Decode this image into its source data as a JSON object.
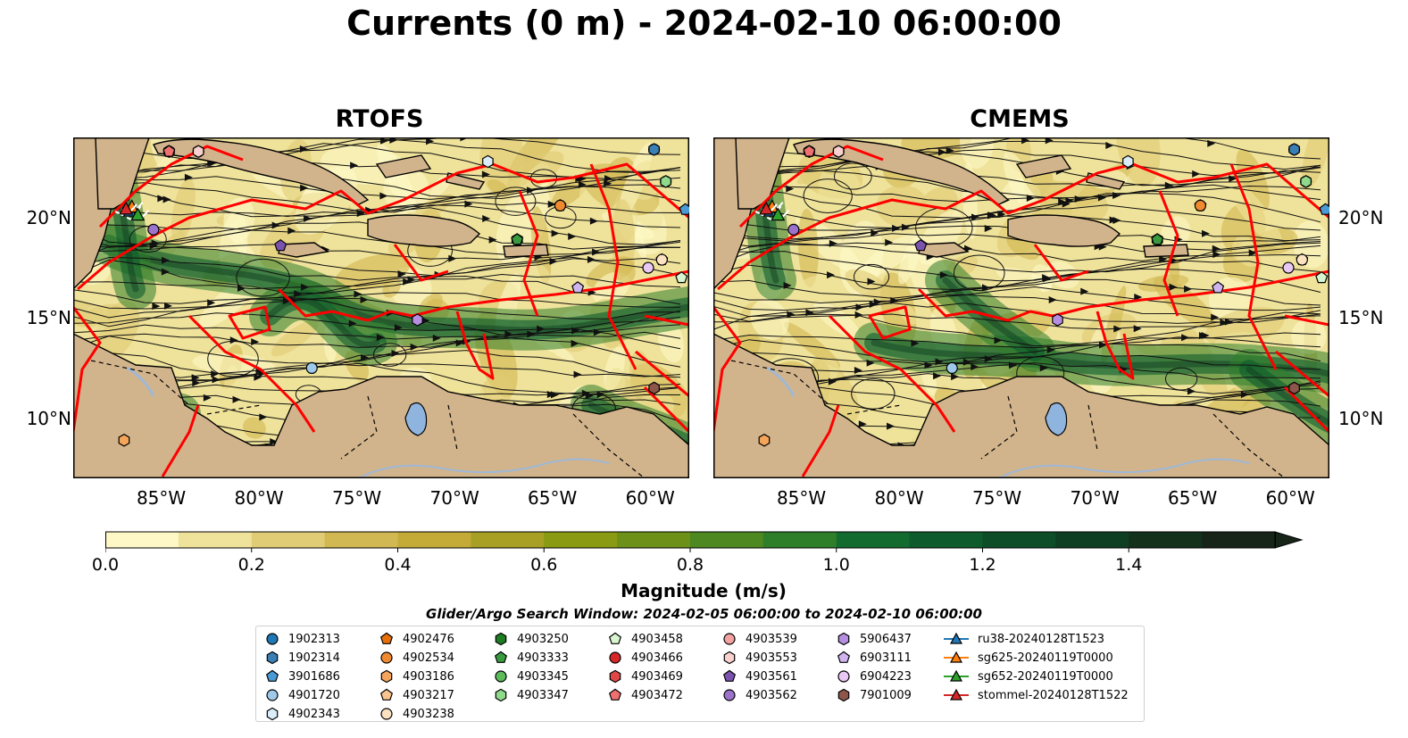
{
  "figure": {
    "title": "Currents (0 m) - 2024-02-10 06:00:00",
    "search_window": "Glider/Argo Search Window: 2024-02-05 06:00:00 to 2024-02-10 06:00:00"
  },
  "colors": {
    "land": "#d2b48c",
    "lake": "#8fb4de",
    "track": "#ff0000",
    "border": "#000000",
    "colormap": [
      "#fdf8c6",
      "#efe29a",
      "#e0cc74",
      "#d2b852",
      "#c4ab38",
      "#a7a024",
      "#8a9a12",
      "#6d9118",
      "#4d8820",
      "#2f7e2a",
      "#136b30",
      "#0e5c2d",
      "#0d4d28",
      "#0f3f22",
      "#14311c",
      "#172518"
    ]
  },
  "chart_data": [
    {
      "type": "heatmap",
      "title": "RTOFS",
      "xlim": [
        -89.5,
        -58
      ],
      "ylim": [
        7,
        24
      ],
      "xticks": [
        -85,
        -80,
        -75,
        -70,
        -65,
        -60
      ],
      "xtick_labels": [
        "85°W",
        "80°W",
        "75°W",
        "70°W",
        "65°W",
        "60°W"
      ],
      "yticks": [
        10,
        15,
        20
      ],
      "ytick_labels": [
        "10°N",
        "15°N",
        "20°N"
      ]
    },
    {
      "type": "heatmap",
      "title": "CMEMS",
      "xlim": [
        -89.5,
        -58
      ],
      "ylim": [
        7,
        24
      ],
      "xticks": [
        -85,
        -80,
        -75,
        -70,
        -65,
        -60
      ],
      "xtick_labels": [
        "85°W",
        "80°W",
        "75°W",
        "70°W",
        "65°W",
        "60°W"
      ],
      "yticks": [
        10,
        15,
        20
      ],
      "ytick_labels": [
        "10°N",
        "15°N",
        "20°N"
      ]
    }
  ],
  "colorbar": {
    "label": "Magnitude (m/s)",
    "min": 0.0,
    "max": 1.6,
    "step": 0.1,
    "ticks": [
      "0.0",
      "0.2",
      "0.4",
      "0.6",
      "0.8",
      "1.0",
      "1.2",
      "1.4"
    ],
    "extend": "max"
  },
  "floats": [
    {
      "id": "1902313",
      "marker": "circle",
      "color": "#1f77b4",
      "lon": -59.8,
      "lat": 23.4
    },
    {
      "id": "1902314",
      "marker": "hexagon",
      "color": "#3a7fb5",
      "lon": -59.8,
      "lat": 23.4
    },
    {
      "id": "3901686",
      "marker": "pentagon",
      "color": "#4a9ad6",
      "lon": -58.2,
      "lat": 20.4
    },
    {
      "id": "4901720",
      "marker": "circle",
      "color": "#9ec9ea",
      "lon": -77.3,
      "lat": 12.5
    },
    {
      "id": "4902343",
      "marker": "hexagon",
      "color": "#d9ecf8",
      "lon": -68.3,
      "lat": 22.8
    },
    {
      "id": "4902476",
      "marker": "pentagon",
      "color": "#e8700a",
      "lon": -64.6,
      "lat": 20.6
    },
    {
      "id": "4902534",
      "marker": "circle",
      "color": "#f08a30",
      "lon": -64.6,
      "lat": 20.6
    },
    {
      "id": "4903186",
      "marker": "hexagon",
      "color": "#f5a55a",
      "lon": -86.9,
      "lat": 8.9
    },
    {
      "id": "4903217",
      "marker": "pentagon",
      "color": "#f9c48e",
      "lon": -59.4,
      "lat": 17.9
    },
    {
      "id": "4903238",
      "marker": "circle",
      "color": "#fde2c2",
      "lon": -59.4,
      "lat": 17.9
    },
    {
      "id": "4903250",
      "marker": "hexagon",
      "color": "#1e7d23",
      "lon": -66.8,
      "lat": 18.9
    },
    {
      "id": "4903333",
      "marker": "pentagon",
      "color": "#3a9b3e",
      "lon": -66.8,
      "lat": 18.9
    },
    {
      "id": "4903345",
      "marker": "circle",
      "color": "#5dbb5a",
      "lon": -59.2,
      "lat": 21.8
    },
    {
      "id": "4903347",
      "marker": "hexagon",
      "color": "#8fd98a",
      "lon": -59.2,
      "lat": 21.8
    },
    {
      "id": "4903458",
      "marker": "pentagon",
      "color": "#d8f5cf",
      "lon": -58.4,
      "lat": 17.0
    },
    {
      "id": "4903466",
      "marker": "circle",
      "color": "#d62728",
      "lon": -84.6,
      "lat": 23.3
    },
    {
      "id": "4903469",
      "marker": "hexagon",
      "color": "#e04848",
      "lon": -84.6,
      "lat": 23.3
    },
    {
      "id": "4903472",
      "marker": "pentagon",
      "color": "#f07070",
      "lon": -84.6,
      "lat": 23.3
    },
    {
      "id": "4903539",
      "marker": "circle",
      "color": "#f4a2a2",
      "lon": -83.1,
      "lat": 23.3
    },
    {
      "id": "4903553",
      "marker": "hexagon",
      "color": "#fbd0cf",
      "lon": -83.1,
      "lat": 23.3
    },
    {
      "id": "4903561",
      "marker": "pentagon",
      "color": "#7b52ae",
      "lon": -78.9,
      "lat": 18.6
    },
    {
      "id": "4903562",
      "marker": "circle",
      "color": "#9b73cc",
      "lon": -85.4,
      "lat": 19.4
    },
    {
      "id": "5906437",
      "marker": "hexagon",
      "color": "#b58ee0",
      "lon": -71.9,
      "lat": 14.9
    },
    {
      "id": "6903111",
      "marker": "pentagon",
      "color": "#d0b4ef",
      "lon": -63.7,
      "lat": 16.5
    },
    {
      "id": "6904223",
      "marker": "circle",
      "color": "#e9c8f5",
      "lon": -60.1,
      "lat": 17.5
    },
    {
      "id": "7901009",
      "marker": "hexagon",
      "color": "#8c564b",
      "lon": -59.8,
      "lat": 11.5
    }
  ],
  "gliders": [
    {
      "id": "ru38-20240128T1523",
      "color": "#1f77b4",
      "lon": -86.6,
      "lat": 20.3
    },
    {
      "id": "sg625-20240119T0000",
      "color": "#ff7f0e",
      "lon": -86.5,
      "lat": 20.5
    },
    {
      "id": "sg652-20240119T0000",
      "color": "#2ca02c",
      "lon": -86.2,
      "lat": 20.1
    },
    {
      "id": "stommel-20240128T1522",
      "color": "#d62728",
      "lon": -86.8,
      "lat": 20.4
    }
  ]
}
